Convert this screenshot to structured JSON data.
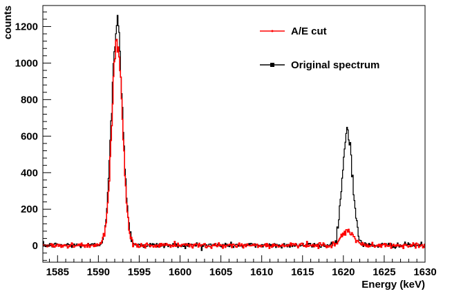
{
  "chart_data": {
    "type": "line",
    "title": "",
    "xlabel": "Energy (keV)",
    "ylabel": "counts",
    "xlim": [
      1583.2,
      1630
    ],
    "ylim": [
      -90,
      1315
    ],
    "x_ticks": [
      "1585",
      "1590",
      "1595",
      "1600",
      "1605",
      "1610",
      "1615",
      "1620",
      "1625",
      "1630"
    ],
    "x_tick_values": [
      1585,
      1590,
      1595,
      1600,
      1605,
      1610,
      1615,
      1620,
      1625,
      1630
    ],
    "y_ticks": [
      "0",
      "200",
      "400",
      "600",
      "800",
      "1000",
      "1200"
    ],
    "y_tick_values": [
      0,
      200,
      400,
      600,
      800,
      1000,
      1200
    ],
    "legend_position": "top-right",
    "histogram_bin_width_keV": 0.1,
    "series": [
      {
        "name": "A/E cut",
        "color": "#ff0000",
        "marker": "dot",
        "peaks": [
          {
            "center": 1592.3,
            "height": 1100,
            "sigma": 0.65
          },
          {
            "center": 1620.5,
            "height": 75,
            "sigma": 0.75
          }
        ],
        "baseline": 2
      },
      {
        "name": "Original spectrum",
        "color": "#000000",
        "marker": "square",
        "peaks": [
          {
            "center": 1592.3,
            "height": 1210,
            "sigma": 0.67
          },
          {
            "center": 1620.5,
            "height": 630,
            "sigma": 0.62
          }
        ],
        "baseline": 3
      }
    ]
  }
}
